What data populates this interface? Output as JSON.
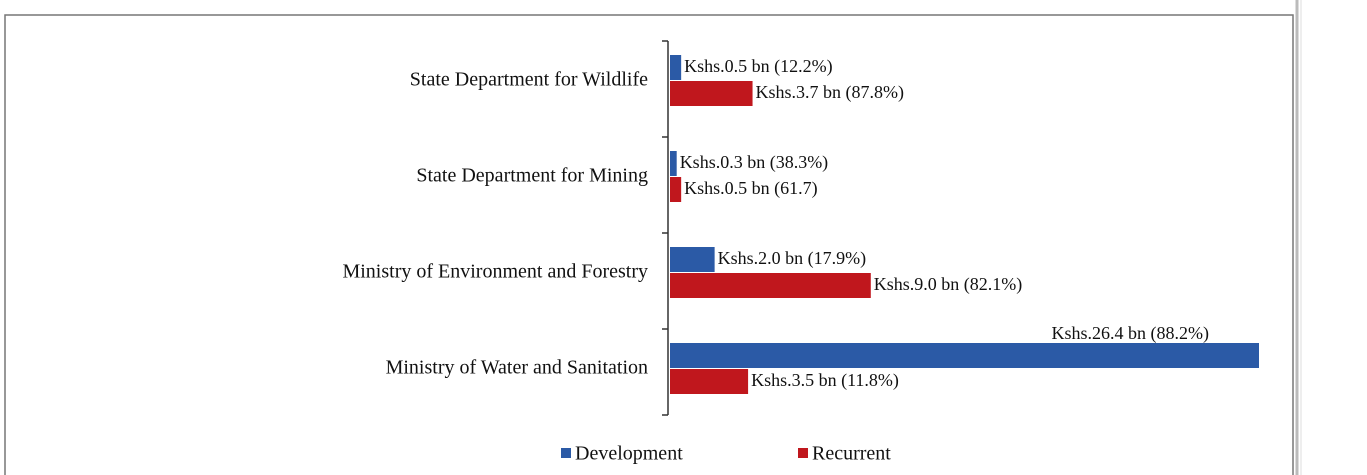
{
  "chart_data": {
    "type": "bar",
    "orientation": "horizontal",
    "categories": [
      "State Department for Wildlife",
      "State Department for Mining",
      "Ministry of Environment and Forestry",
      "Ministry of Water and Sanitation"
    ],
    "series": [
      {
        "name": "Development",
        "color": "#2b5aa6",
        "values": [
          0.5,
          0.3,
          2.0,
          26.4
        ],
        "value_labels": [
          "Kshs.0.5 bn (12.2%)",
          "Kshs.0.3 bn (38.3%)",
          "Kshs.2.0 bn (17.9%)",
          "Kshs.26.4 bn (88.2%)"
        ]
      },
      {
        "name": "Recurrent",
        "color": "#c0171d",
        "values": [
          3.7,
          0.5,
          9.0,
          3.5
        ],
        "value_labels": [
          "Kshs.3.7 bn (87.8%)",
          "Kshs.0.5 bn (61.7)",
          "Kshs.9.0 bn (82.1%)",
          "Kshs.3.5 bn (11.8%)"
        ]
      }
    ],
    "legend": "bottom"
  }
}
